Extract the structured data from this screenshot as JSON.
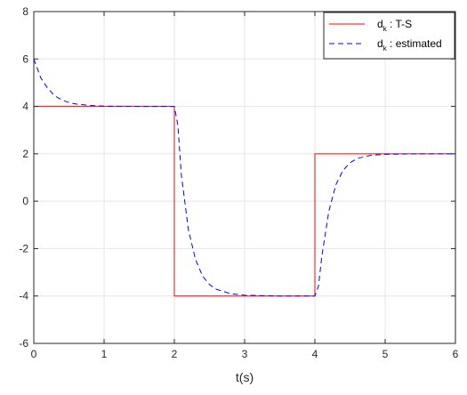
{
  "chart_data": {
    "type": "line",
    "xlabel": "t(s)",
    "ylabel": "",
    "title": "",
    "xlim": [
      0,
      6
    ],
    "ylim": [
      -6,
      8
    ],
    "xticks": [
      "0",
      "1",
      "2",
      "3",
      "4",
      "5",
      "6"
    ],
    "yticks": [
      "-6",
      "-4",
      "-2",
      "0",
      "2",
      "4",
      "6",
      "8"
    ],
    "grid": true,
    "legend_position": "top-right",
    "series": [
      {
        "name": "d_k : T-S",
        "legend_main": "d",
        "legend_sub": "k",
        "legend_rest": " : T-S",
        "color": "#ff0000",
        "style": "solid",
        "x": [
          0,
          2,
          2,
          4,
          4,
          6
        ],
        "y": [
          4,
          4,
          -4,
          -4,
          2,
          2
        ]
      },
      {
        "name": "d_k : estimated",
        "legend_main": "d",
        "legend_sub": "k",
        "legend_rest": " : estimated",
        "color": "#0000ff",
        "style": "dashed",
        "x": [
          0,
          0.1,
          0.2,
          0.3,
          0.4,
          0.5,
          0.6,
          0.8,
          1.0,
          1.5,
          2.0,
          2.05,
          2.1,
          2.2,
          2.3,
          2.4,
          2.5,
          2.6,
          2.8,
          3.0,
          3.5,
          4.0,
          4.05,
          4.1,
          4.2,
          4.3,
          4.4,
          4.5,
          4.6,
          4.8,
          5.0,
          5.5,
          6.0
        ],
        "y": [
          6.0,
          5.2,
          4.75,
          4.44,
          4.27,
          4.16,
          4.1,
          4.04,
          4.01,
          4.0,
          4.0,
          3.2,
          1.1,
          -1.2,
          -2.45,
          -3.15,
          -3.52,
          -3.72,
          -3.9,
          -3.97,
          -4.0,
          -4.0,
          -3.6,
          -2.3,
          -0.4,
          0.7,
          1.3,
          1.62,
          1.8,
          1.94,
          1.98,
          2.0,
          2.0
        ]
      }
    ]
  }
}
